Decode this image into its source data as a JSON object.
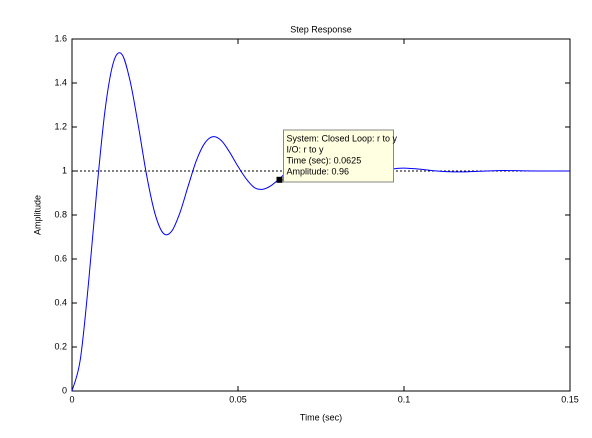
{
  "chart_data": {
    "type": "line",
    "title": "Step Response",
    "x_label": "Time (sec)",
    "y_label": "Amplitude",
    "xlim": [
      0,
      0.15
    ],
    "ylim": [
      0,
      1.6
    ],
    "xticks": [
      0,
      0.05,
      0.1,
      0.15
    ],
    "yticks": [
      0,
      0.2,
      0.4,
      0.6,
      0.8,
      1,
      1.2,
      1.4,
      1.6
    ],
    "steady_state": 1,
    "series": [
      {
        "color": "#0000ff",
        "x": [
          0,
          0.0025,
          0.005,
          0.0075,
          0.01,
          0.0125,
          0.015,
          0.0175,
          0.02,
          0.0225,
          0.025,
          0.0275,
          0.03,
          0.0325,
          0.035,
          0.0375,
          0.04,
          0.0425,
          0.045,
          0.0475,
          0.05,
          0.0525,
          0.055,
          0.0575,
          0.06,
          0.0625,
          0.065,
          0.0675,
          0.07,
          0.0725,
          0.075,
          0.0775,
          0.08,
          0.0825,
          0.085,
          0.0875,
          0.09,
          0.0925,
          0.095,
          0.0975,
          0.1,
          0.105,
          0.11,
          0.115,
          0.12,
          0.125,
          0.13,
          0.135,
          0.14,
          0.145,
          0.15
        ],
        "values": [
          0,
          0.143,
          0.495,
          0.918,
          1.282,
          1.495,
          1.531,
          1.409,
          1.204,
          0.979,
          0.806,
          0.717,
          0.726,
          0.81,
          0.932,
          1.049,
          1.127,
          1.156,
          1.138,
          1.085,
          1.021,
          0.964,
          0.924,
          0.917,
          0.934,
          0.965,
          1.0,
          1.028,
          1.044,
          1.044,
          1.031,
          1.013,
          0.995,
          0.981,
          0.976,
          0.978,
          0.986,
          0.996,
          1.006,
          1.011,
          1.013,
          1.008,
          1.0,
          0.996,
          0.997,
          1.0,
          1.002,
          1.001,
          1.0,
          1.0,
          1.0
        ]
      }
    ],
    "datatip": {
      "x": 0.0625,
      "y": 0.96,
      "lines": [
        "System: Closed Loop: r to y",
        "I/O: r to y",
        "Time (sec): 0.0625",
        "Amplitude: 0.96"
      ]
    }
  }
}
